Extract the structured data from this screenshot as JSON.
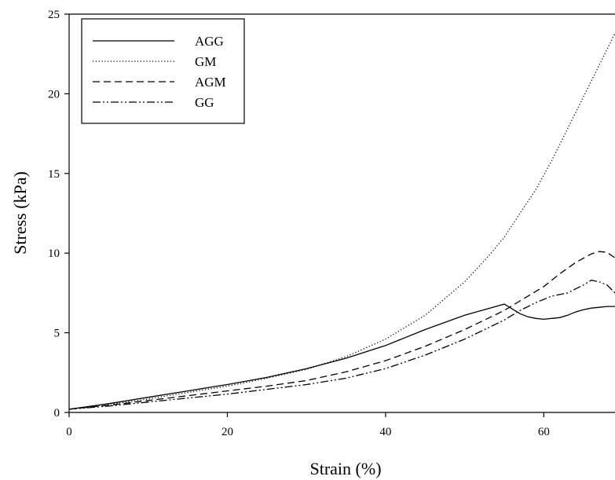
{
  "chart_data": {
    "type": "line",
    "title": "",
    "xlabel": "Strain (%)",
    "ylabel": "Stress (kPa)",
    "xlim": [
      0,
      69
    ],
    "ylim": [
      0,
      25
    ],
    "xticks": [
      0,
      20,
      40,
      60
    ],
    "yticks": [
      0,
      5,
      10,
      15,
      20,
      25
    ],
    "grid": false,
    "legend_position": "top-left",
    "series": [
      {
        "name": "AGG",
        "style": "solid",
        "points": [
          [
            0,
            0.2
          ],
          [
            5,
            0.55
          ],
          [
            10,
            0.95
          ],
          [
            15,
            1.35
          ],
          [
            20,
            1.75
          ],
          [
            25,
            2.2
          ],
          [
            30,
            2.75
          ],
          [
            35,
            3.4
          ],
          [
            40,
            4.2
          ],
          [
            45,
            5.2
          ],
          [
            50,
            6.1
          ],
          [
            55,
            6.8
          ],
          [
            56,
            6.5
          ],
          [
            57,
            6.2
          ],
          [
            58,
            6.0
          ],
          [
            59,
            5.9
          ],
          [
            60,
            5.85
          ],
          [
            61,
            5.9
          ],
          [
            62,
            5.95
          ],
          [
            63,
            6.1
          ],
          [
            64,
            6.3
          ],
          [
            65,
            6.45
          ],
          [
            66,
            6.55
          ],
          [
            67,
            6.6
          ],
          [
            68,
            6.65
          ],
          [
            69,
            6.65
          ]
        ]
      },
      {
        "name": "GM",
        "style": "dotted",
        "points": [
          [
            0,
            0.2
          ],
          [
            5,
            0.5
          ],
          [
            10,
            0.85
          ],
          [
            15,
            1.25
          ],
          [
            20,
            1.65
          ],
          [
            25,
            2.15
          ],
          [
            30,
            2.7
          ],
          [
            35,
            3.5
          ],
          [
            40,
            4.6
          ],
          [
            45,
            6.1
          ],
          [
            50,
            8.2
          ],
          [
            53,
            9.8
          ],
          [
            55,
            11.0
          ],
          [
            57,
            12.5
          ],
          [
            59,
            14.0
          ],
          [
            61,
            15.8
          ],
          [
            63,
            17.8
          ],
          [
            65,
            19.8
          ],
          [
            67,
            21.8
          ],
          [
            69,
            23.8
          ]
        ]
      },
      {
        "name": "AGM",
        "style": "dashed",
        "points": [
          [
            0,
            0.2
          ],
          [
            5,
            0.45
          ],
          [
            10,
            0.75
          ],
          [
            15,
            1.05
          ],
          [
            20,
            1.35
          ],
          [
            25,
            1.65
          ],
          [
            30,
            2.0
          ],
          [
            35,
            2.55
          ],
          [
            40,
            3.25
          ],
          [
            45,
            4.15
          ],
          [
            50,
            5.2
          ],
          [
            55,
            6.4
          ],
          [
            57,
            7.0
          ],
          [
            60,
            7.9
          ],
          [
            62,
            8.7
          ],
          [
            64,
            9.4
          ],
          [
            66,
            9.95
          ],
          [
            67,
            10.1
          ],
          [
            68,
            10.05
          ],
          [
            69,
            9.7
          ]
        ]
      },
      {
        "name": "GG",
        "style": "dashdotdot",
        "points": [
          [
            0,
            0.2
          ],
          [
            5,
            0.4
          ],
          [
            10,
            0.65
          ],
          [
            15,
            0.9
          ],
          [
            20,
            1.15
          ],
          [
            25,
            1.45
          ],
          [
            30,
            1.75
          ],
          [
            35,
            2.15
          ],
          [
            40,
            2.75
          ],
          [
            45,
            3.6
          ],
          [
            50,
            4.6
          ],
          [
            55,
            5.8
          ],
          [
            57,
            6.4
          ],
          [
            59,
            6.9
          ],
          [
            61,
            7.3
          ],
          [
            63,
            7.5
          ],
          [
            65,
            8.0
          ],
          [
            66,
            8.3
          ],
          [
            67,
            8.2
          ],
          [
            68,
            8.0
          ],
          [
            69,
            7.5
          ]
        ]
      }
    ]
  }
}
